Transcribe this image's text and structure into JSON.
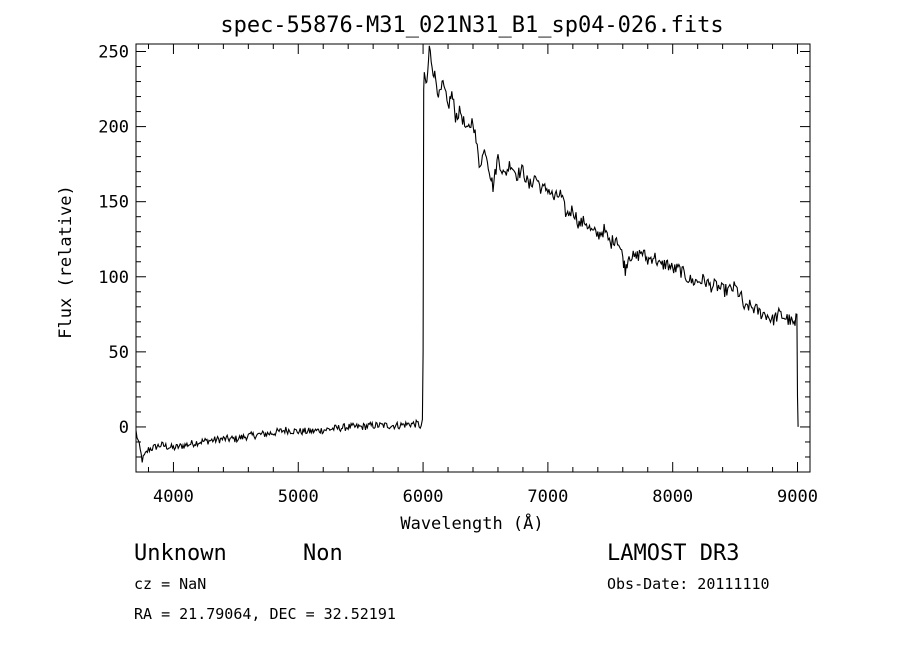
{
  "chart_data": {
    "type": "line",
    "title": "spec-55876-M31_021N31_B1_sp04-026.fits",
    "xlabel": "Wavelength (Å)",
    "ylabel": "Flux (relative)",
    "xlim": [
      3700,
      9100
    ],
    "ylim": [
      -30,
      255
    ],
    "x_ticks": [
      4000,
      5000,
      6000,
      7000,
      8000,
      9000
    ],
    "y_ticks": [
      0,
      50,
      100,
      150,
      200,
      250
    ],
    "x_tick_labels": [
      "4000",
      "5000",
      "6000",
      "7000",
      "8000",
      "9000"
    ],
    "y_tick_labels": [
      "0",
      "50",
      "100",
      "150",
      "200",
      "250"
    ],
    "grid": false,
    "series": [
      {
        "x": [
          3700,
          3750,
          3800,
          3900,
          4000,
          4100,
          4200,
          4300,
          4400,
          4500,
          4600,
          4700,
          4800,
          4900,
          5000,
          5100,
          5200,
          5300,
          5400,
          5500,
          5600,
          5700,
          5800,
          5900,
          5960,
          5985,
          5995,
          6000,
          6005,
          6010,
          6030,
          6050,
          6080,
          6100,
          6130,
          6160,
          6200,
          6230,
          6260,
          6300,
          6350,
          6400,
          6450,
          6500,
          6530,
          6560,
          6600,
          6650,
          6700,
          6750,
          6800,
          6850,
          6900,
          6950,
          7000,
          7050,
          7100,
          7150,
          7200,
          7250,
          7300,
          7350,
          7400,
          7450,
          7500,
          7550,
          7600,
          7620,
          7650,
          7700,
          7750,
          7800,
          7850,
          7900,
          7950,
          8000,
          8050,
          8100,
          8150,
          8200,
          8250,
          8300,
          8350,
          8400,
          8450,
          8500,
          8550,
          8580,
          8600,
          8650,
          8700,
          8750,
          8800,
          8850,
          8900,
          8950,
          8980,
          8995,
          9000,
          9005
        ],
        "y": [
          -3,
          -22,
          -15,
          -12,
          -14,
          -12,
          -10,
          -9,
          -8,
          -8,
          -6,
          -5,
          -4,
          -2,
          -3,
          -3,
          -2,
          -1,
          0,
          0,
          1,
          1,
          1,
          2,
          2,
          0,
          5,
          50,
          225,
          232,
          228,
          252,
          238,
          232,
          220,
          228,
          213,
          222,
          207,
          210,
          196,
          205,
          175,
          185,
          172,
          160,
          180,
          167,
          176,
          168,
          171,
          160,
          167,
          158,
          159,
          152,
          155,
          141,
          145,
          135,
          137,
          130,
          128,
          131,
          122,
          127,
          113,
          105,
          115,
          112,
          117,
          111,
          114,
          107,
          109,
          105,
          105,
          101,
          97,
          97,
          98,
          94,
          94,
          91,
          91,
          93,
          86,
          77,
          81,
          79,
          76,
          75,
          71,
          75,
          73,
          70,
          67,
          75,
          20,
          0
        ]
      }
    ]
  },
  "info": {
    "object": "Unknown",
    "class": "Non",
    "survey": "LAMOST DR3",
    "cz": "cz = NaN",
    "obs_date": "Obs-Date: 20111110",
    "coords": "RA =  21.79064, DEC =  32.52191"
  }
}
